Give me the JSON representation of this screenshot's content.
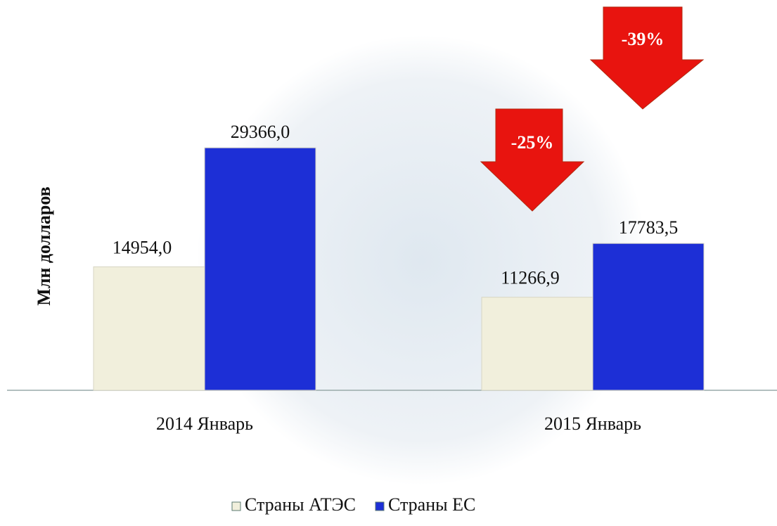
{
  "chart_data": {
    "type": "bar",
    "y_label": "Млн долларов",
    "categories": [
      "2014 Январь",
      "2015 Январь"
    ],
    "series": [
      {
        "name": "Страны АТЭС",
        "color": "#f1efdc",
        "values": [
          14954.0,
          11266.9
        ],
        "value_labels": [
          "14954,0",
          "11266,9"
        ]
      },
      {
        "name": "Страны ЕС",
        "color": "#1d2fd6",
        "values": [
          29366.0,
          17783.5
        ],
        "value_labels": [
          "29366,0",
          "17783,5"
        ]
      }
    ],
    "ylim": [
      0,
      35000
    ],
    "annotations": [
      "-25%",
      "-39%"
    ],
    "legend": "bottom"
  }
}
